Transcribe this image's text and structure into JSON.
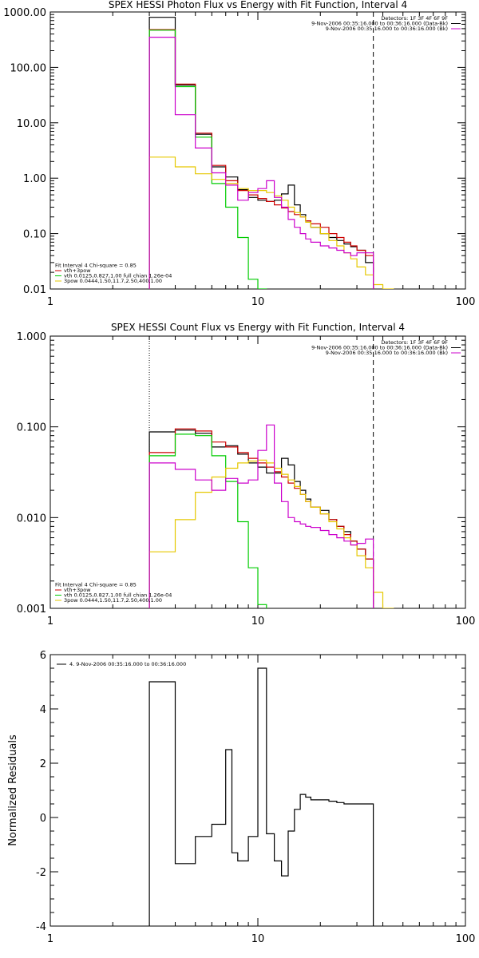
{
  "colors": {
    "data": "#000000",
    "total_fit": "#cc0000",
    "thermal": "#00cc00",
    "power_law": "#e6c800",
    "background": "#cc00cc"
  },
  "chart_data": [
    {
      "id": "photon",
      "type": "line",
      "title": "SPEX HESSI Photon Flux vs Energy with Fit Function, Interval 4",
      "xlabel": "",
      "ylabel": "",
      "xscale": "log",
      "yscale": "log",
      "xlim": [
        1,
        100
      ],
      "ylim": [
        0.01,
        1000
      ],
      "x_ticks": [
        1,
        10,
        100
      ],
      "x_tick_labels": [
        "1",
        "10",
        "100"
      ],
      "y_ticks": [
        0.01,
        0.1,
        1,
        10,
        100,
        1000
      ],
      "y_tick_labels": [
        "0.01",
        "0.10",
        "1.00",
        "10.00",
        "100.00",
        "1000.00"
      ],
      "energy_edges": [
        3,
        4,
        5,
        6,
        7,
        8,
        9,
        10,
        11,
        12,
        13,
        14,
        15,
        16,
        17,
        18,
        20,
        22,
        24,
        26,
        28,
        30,
        33,
        36,
        40,
        45
      ],
      "vlines": [
        {
          "x": 3,
          "style": "dotted"
        },
        {
          "x": 36,
          "style": "dashed"
        }
      ],
      "legend_top": {
        "position": "top-right",
        "lines": [
          "Detectors: 1F 3F 4F 6F 9F",
          "9-Nov-2006 00:35:16.000 to 00:36:16.000 (Data-Bk)",
          "9-Nov-2006 00:35:16.000 to 00:36:16.000 (Bk)"
        ],
        "line_colors": [
          "",
          "#000000",
          "#cc00cc"
        ]
      },
      "legend_bottom": {
        "position": "bottom-left",
        "lines": [
          "Fit Interval 4   Chi-square = 0.85",
          "vth+3pow",
          "vth 0.0125,0.827,1.00  full chian 1.26e-04",
          "3pow 0.0444,1.50,11.7,2.50,400,1.00"
        ],
        "line_colors": [
          "",
          "#cc0000",
          "#00cc00",
          "#e6c800"
        ]
      },
      "series": [
        {
          "name": "9-Nov-2006 00:35:16.000 to 00:36:16.000 (Data-Bk)",
          "color": "#000000",
          "values": [
            800,
            48,
            6.2,
            1.6,
            1.05,
            0.62,
            0.45,
            0.4,
            0.38,
            0.4,
            0.52,
            0.75,
            0.33,
            0.22,
            0.17,
            0.13,
            0.1,
            0.085,
            0.075,
            0.065,
            0.058,
            0.05,
            0.03,
            null,
            null
          ]
        },
        {
          "name": "vth+3pow",
          "color": "#cc0000",
          "values": [
            480,
            50,
            6.5,
            1.7,
            0.9,
            0.6,
            0.5,
            0.43,
            0.38,
            0.33,
            0.29,
            0.25,
            0.22,
            0.2,
            0.17,
            0.15,
            0.13,
            0.1,
            0.085,
            0.07,
            0.06,
            0.05,
            0.04,
            null,
            null
          ]
        },
        {
          "name": "vth 0.0125,0.827,1.00  full chian 1.26e-04",
          "color": "#00cc00",
          "values": [
            470,
            45,
            5.5,
            0.8,
            0.3,
            0.085,
            0.015,
            0.01,
            null,
            null,
            null,
            null,
            null,
            null,
            null,
            null,
            null,
            null,
            null,
            null,
            null,
            null,
            null,
            null,
            null
          ]
        },
        {
          "name": "3pow 0.0444,1.50,11.7,2.50,400,1.00",
          "color": "#e6c800",
          "values": [
            2.4,
            1.6,
            1.2,
            0.95,
            0.8,
            0.65,
            0.6,
            0.6,
            0.55,
            0.48,
            0.4,
            0.3,
            0.24,
            0.2,
            0.16,
            0.13,
            0.1,
            0.075,
            0.06,
            0.045,
            0.035,
            0.025,
            0.018,
            0.012,
            0.01
          ]
        },
        {
          "name": "9-Nov-2006 00:35:16.000 to 00:36:16.000 (Bk)",
          "color": "#cc00cc",
          "values": [
            350,
            14,
            3.5,
            1.25,
            0.75,
            0.4,
            0.55,
            0.65,
            0.9,
            0.45,
            0.3,
            0.18,
            0.13,
            0.1,
            0.08,
            0.07,
            0.06,
            0.055,
            0.05,
            0.045,
            0.04,
            0.045,
            0.045,
            null,
            null
          ]
        }
      ]
    },
    {
      "id": "count",
      "type": "line",
      "title": "SPEX HESSI Count Flux vs Energy with Fit Function, Interval 4",
      "xlabel": "",
      "ylabel": "",
      "xscale": "log",
      "yscale": "log",
      "xlim": [
        1,
        100
      ],
      "ylim": [
        0.001,
        1
      ],
      "x_ticks": [
        1,
        10,
        100
      ],
      "x_tick_labels": [
        "1",
        "10",
        "100"
      ],
      "y_ticks": [
        0.001,
        0.01,
        0.1,
        1
      ],
      "y_tick_labels": [
        "0.001",
        "0.010",
        "0.100",
        "1.000"
      ],
      "energy_edges": [
        3,
        4,
        5,
        6,
        7,
        8,
        9,
        10,
        11,
        12,
        13,
        14,
        15,
        16,
        17,
        18,
        20,
        22,
        24,
        26,
        28,
        30,
        33,
        36,
        40,
        45
      ],
      "vlines": [
        {
          "x": 3,
          "style": "dotted"
        },
        {
          "x": 36,
          "style": "dashed"
        }
      ],
      "legend_top": {
        "position": "top-right",
        "lines": [
          "Detectors: 1F 3F 4F 6F 9F",
          "9-Nov-2006 00:35:16.000 to 00:36:16.000 (Data-Bk)",
          "9-Nov-2006 00:35:16.000 to 00:36:16.000 (Bk)"
        ],
        "line_colors": [
          "",
          "#000000",
          "#cc00cc"
        ]
      },
      "legend_bottom": {
        "position": "bottom-left",
        "lines": [
          "Fit Interval 4   Chi-square = 0.85",
          "vth+3pow",
          "vth 0.0125,0.827,1.00  full chian 1.26e-04",
          "3pow 0.0444,1.50,11.7,2.50,400,1.00"
        ],
        "line_colors": [
          "",
          "#cc0000",
          "#00cc00",
          "#e6c800"
        ]
      },
      "series": [
        {
          "name": "9-Nov-2006 00:35:16.000 to 00:36:16.000 (Data-Bk)",
          "color": "#000000",
          "values": [
            0.088,
            0.092,
            0.085,
            0.06,
            0.062,
            0.05,
            0.04,
            0.036,
            0.031,
            0.031,
            0.045,
            0.038,
            0.025,
            0.02,
            0.016,
            0.013,
            0.012,
            0.0095,
            0.008,
            0.007,
            0.0055,
            0.0045,
            0.0035,
            null,
            null
          ]
        },
        {
          "name": "vth+3pow",
          "color": "#cc0000",
          "values": [
            0.052,
            0.095,
            0.09,
            0.068,
            0.06,
            0.052,
            0.045,
            0.04,
            0.036,
            0.032,
            0.028,
            0.024,
            0.021,
            0.018,
            0.015,
            0.013,
            0.011,
            0.0095,
            0.008,
            0.0065,
            0.0055,
            0.0045,
            0.0035,
            null,
            null
          ]
        },
        {
          "name": "vth 0.0125,0.827,1.00  full chian 1.26e-04",
          "color": "#00cc00",
          "values": [
            0.048,
            0.083,
            0.08,
            0.048,
            0.025,
            0.009,
            0.0028,
            0.0011,
            null,
            null,
            null,
            null,
            null,
            null,
            null,
            null,
            null,
            null,
            null,
            null,
            null,
            null,
            null,
            null,
            null
          ]
        },
        {
          "name": "3pow 0.0444,1.50,11.7,2.50,400,1.00",
          "color": "#e6c800",
          "values": [
            0.0042,
            0.0095,
            0.019,
            0.028,
            0.035,
            0.04,
            0.042,
            0.043,
            0.04,
            0.035,
            0.03,
            0.026,
            0.022,
            0.018,
            0.015,
            0.013,
            0.011,
            0.009,
            0.0075,
            0.006,
            0.005,
            0.0038,
            0.0028,
            0.0015,
            0.001
          ]
        },
        {
          "name": "9-Nov-2006 00:35:16.000 to 00:36:16.000 (Bk)",
          "color": "#cc00cc",
          "values": [
            0.04,
            0.034,
            0.026,
            0.02,
            0.027,
            0.024,
            0.026,
            0.055,
            0.105,
            0.024,
            0.015,
            0.01,
            0.009,
            0.0085,
            0.008,
            0.0078,
            0.0072,
            0.0065,
            0.006,
            0.0055,
            0.005,
            0.0052,
            0.0058,
            null,
            null
          ]
        }
      ]
    },
    {
      "id": "residuals",
      "type": "line",
      "title": "",
      "xlabel": "",
      "ylabel": "Normalized Residuals",
      "xscale": "log",
      "yscale": "linear",
      "xlim": [
        1,
        100
      ],
      "ylim": [
        -4,
        6
      ],
      "x_ticks": [
        1,
        10,
        100
      ],
      "x_tick_labels": [
        "1",
        "10",
        "100"
      ],
      "y_ticks": [
        -4,
        -2,
        0,
        2,
        4,
        6
      ],
      "y_tick_labels": [
        "-4",
        "-2",
        "0",
        "2",
        "4",
        "6"
      ],
      "energy_edges": [
        3,
        4,
        5,
        6,
        7,
        7.5,
        8,
        9,
        10,
        11,
        12,
        13,
        14,
        15,
        16,
        17,
        18,
        20,
        22,
        24,
        26,
        28,
        30,
        33,
        36
      ],
      "legend_top": {
        "position": "top-left",
        "lines": [
          "4.  9-Nov-2006 00:35:16.000 to 00:36:16.000"
        ],
        "line_colors": [
          "#000000"
        ]
      },
      "series": [
        {
          "name": "4.  9-Nov-2006 00:35:16.000 to 00:36:16.000",
          "color": "#000000",
          "values": [
            5.0,
            -1.7,
            -0.7,
            -0.25,
            2.5,
            -1.3,
            -1.6,
            -0.7,
            5.5,
            -0.6,
            -1.6,
            -2.15,
            -0.5,
            0.3,
            0.85,
            0.75,
            0.65,
            0.65,
            0.6,
            0.55,
            0.5,
            0.5,
            0.5,
            0.5
          ]
        }
      ]
    }
  ]
}
